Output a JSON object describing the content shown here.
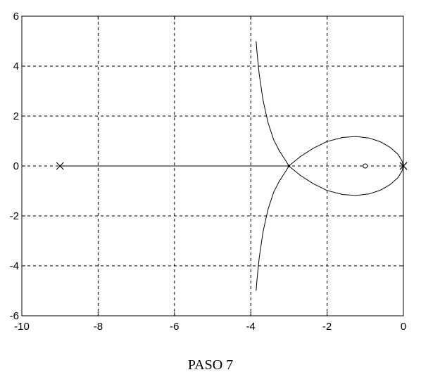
{
  "chart_data": {
    "type": "line",
    "title": "",
    "xlabel": "",
    "ylabel": "",
    "xlim": [
      -10,
      0
    ],
    "ylim": [
      -6,
      6
    ],
    "x_ticks": [
      -10,
      -8,
      -6,
      -4,
      -2,
      0
    ],
    "y_ticks": [
      -6,
      -4,
      -2,
      0,
      2,
      4,
      6
    ],
    "x_tick_labels": [
      "-10",
      "-8",
      "-6",
      "-4",
      "-2",
      "0"
    ],
    "y_tick_labels": [
      "-6",
      "-4",
      "-2",
      "0",
      "2",
      "4",
      "6"
    ],
    "grid": true,
    "grid_style": "dashed",
    "series": [
      {
        "values": [
          [
            -9,
            0
          ],
          [
            -3,
            0
          ]
        ]
      },
      {
        "values": [
          [
            -3.0,
            0.0
          ],
          [
            -3.1,
            0.25
          ],
          [
            -3.25,
            0.6
          ],
          [
            -3.4,
            1.05
          ],
          [
            -3.55,
            1.75
          ],
          [
            -3.68,
            2.65
          ],
          [
            -3.78,
            3.7
          ],
          [
            -3.84,
            4.6
          ],
          [
            -3.86,
            5.0
          ]
        ]
      },
      {
        "values": [
          [
            -3.0,
            0.0
          ],
          [
            -3.1,
            -0.25
          ],
          [
            -3.25,
            -0.6
          ],
          [
            -3.4,
            -1.05
          ],
          [
            -3.55,
            -1.75
          ],
          [
            -3.68,
            -2.65
          ],
          [
            -3.78,
            -3.7
          ],
          [
            -3.84,
            -4.6
          ],
          [
            -3.86,
            -5.0
          ]
        ]
      },
      {
        "values": [
          [
            -3.0,
            0.0
          ],
          [
            -2.7,
            0.38
          ],
          [
            -2.35,
            0.72
          ],
          [
            -2.0,
            0.98
          ],
          [
            -1.6,
            1.14
          ],
          [
            -1.25,
            1.18
          ],
          [
            -0.9,
            1.12
          ],
          [
            -0.6,
            0.97
          ],
          [
            -0.35,
            0.75
          ],
          [
            -0.15,
            0.48
          ],
          [
            -0.04,
            0.22
          ],
          [
            0.0,
            0.0
          ]
        ]
      },
      {
        "values": [
          [
            -3.0,
            0.0
          ],
          [
            -2.7,
            -0.38
          ],
          [
            -2.35,
            -0.72
          ],
          [
            -2.0,
            -0.98
          ],
          [
            -1.6,
            -1.14
          ],
          [
            -1.25,
            -1.18
          ],
          [
            -0.9,
            -1.12
          ],
          [
            -0.6,
            -0.97
          ],
          [
            -0.35,
            -0.75
          ],
          [
            -0.15,
            -0.48
          ],
          [
            -0.04,
            -0.22
          ],
          [
            0.0,
            0.0
          ]
        ]
      }
    ],
    "poles": [
      [
        -9,
        0
      ],
      [
        0,
        0
      ],
      [
        0,
        0
      ]
    ],
    "zeros": [
      [
        -1,
        0
      ]
    ],
    "break_point": [
      -3,
      0
    ],
    "colors": {
      "line": "#000000",
      "grid": "#000000",
      "background": "#ffffff"
    }
  },
  "caption": "PASO 7"
}
